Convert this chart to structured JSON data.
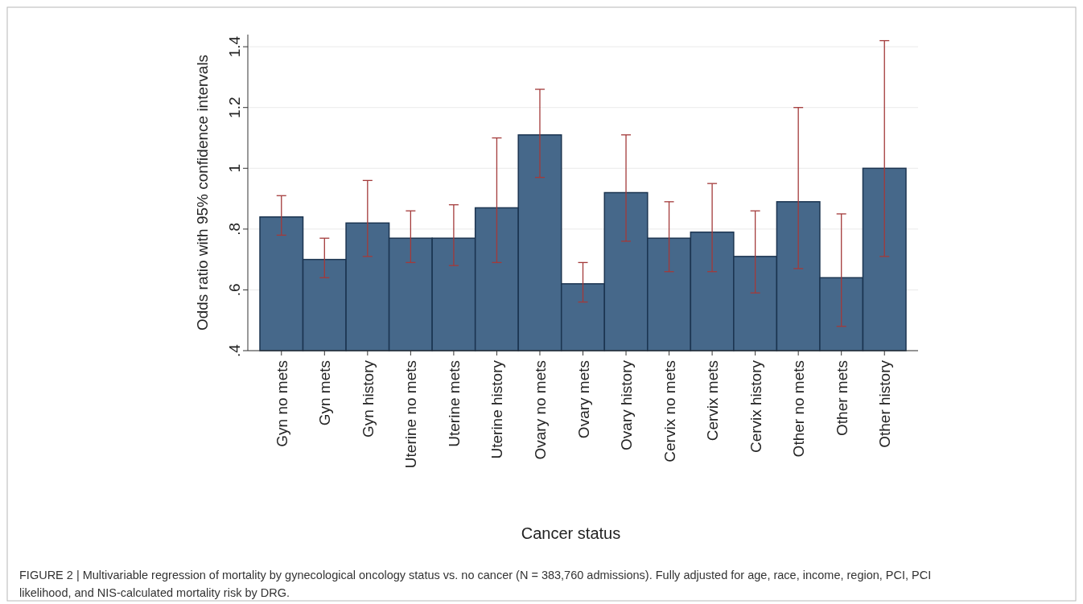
{
  "chart_data": {
    "type": "bar",
    "ylabel": "Odds ratio with 95% confidence intervals",
    "xlabel": "Cancer status",
    "categories": [
      "Gyn no mets",
      "Gyn mets",
      "Gyn history",
      "Uterine no mets",
      "Uterine mets",
      "Uterine history",
      "Ovary no mets",
      "Ovary mets",
      "Ovary history",
      "Cervix no mets",
      "Cervix mets",
      "Cervix history",
      "Other no mets",
      "Other mets",
      "Other history"
    ],
    "values": [
      0.84,
      0.7,
      0.82,
      0.77,
      0.77,
      0.87,
      1.11,
      0.62,
      0.92,
      0.77,
      0.79,
      0.71,
      0.89,
      0.64,
      1.0
    ],
    "errors": [
      [
        0.78,
        0.91
      ],
      [
        0.64,
        0.77
      ],
      [
        0.71,
        0.96
      ],
      [
        0.69,
        0.86
      ],
      [
        0.68,
        0.88
      ],
      [
        0.69,
        1.1
      ],
      [
        0.97,
        1.26
      ],
      [
        0.56,
        0.69
      ],
      [
        0.76,
        1.11
      ],
      [
        0.66,
        0.89
      ],
      [
        0.66,
        0.95
      ],
      [
        0.59,
        0.86
      ],
      [
        0.67,
        1.2
      ],
      [
        0.48,
        0.85
      ],
      [
        0.71,
        1.42
      ]
    ],
    "color": "#46688a",
    "ylim": [
      0.4,
      1.44
    ],
    "yticks": [
      {
        "value": 0.4,
        "label": ".4"
      },
      {
        "value": 0.6,
        "label": ".6"
      },
      {
        "value": 0.8,
        "label": ".8"
      },
      1,
      {
        "value": 1.2,
        "label": "1.2"
      },
      {
        "value": 1.4,
        "label": "1.4"
      }
    ],
    "grid": "y",
    "annotations": [
      "FIGURE 2 | Multivariable regression of mortality by gynecological oncology status vs. no cancer (N = 383,760 admissions). Fully adjusted for age, race, income, region, PCI, PCI likelihood, and NIS-calculated mortality risk by DRG."
    ]
  }
}
